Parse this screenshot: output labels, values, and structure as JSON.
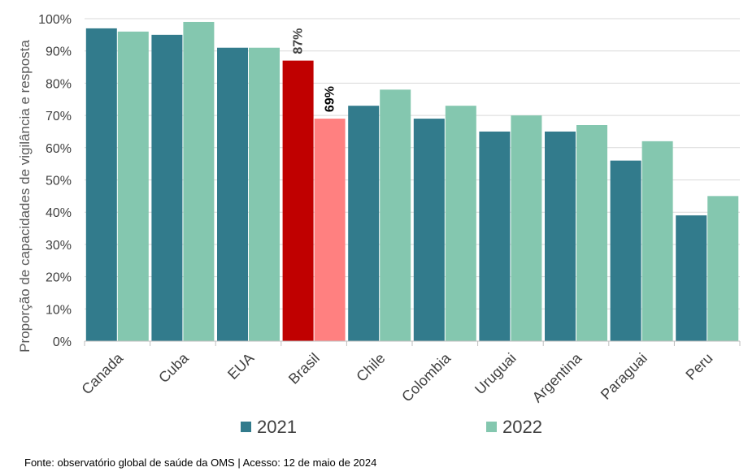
{
  "chart_data": {
    "type": "bar",
    "categories": [
      "Canada",
      "Cuba",
      "EUA",
      "Brasil",
      "Chile",
      "Colombia",
      "Uruguai",
      "Argentina",
      "Paraguai",
      "Peru"
    ],
    "series": [
      {
        "name": "2021",
        "color": "#327B8C",
        "values": [
          97,
          95,
          91,
          87,
          73,
          69,
          65,
          65,
          56,
          39
        ]
      },
      {
        "name": "2022",
        "color": "#84C7AF",
        "values": [
          96,
          99,
          91,
          69,
          78,
          73,
          70,
          67,
          62,
          45
        ]
      }
    ],
    "highlight": {
      "category": "Brasil",
      "colors": [
        "#C00000",
        "#FF8080"
      ]
    },
    "data_labels": [
      {
        "category": "Brasil",
        "series": "2021",
        "text": "87%",
        "color": "#404040"
      },
      {
        "category": "Brasil",
        "series": "2022",
        "text": "69%",
        "color": "#000000"
      }
    ],
    "ylabel": "Proporção de capacidades de vigilância e resposta",
    "xlabel": "",
    "ylim": [
      0,
      100
    ],
    "yticks": [
      "0%",
      "10%",
      "20%",
      "30%",
      "40%",
      "50%",
      "60%",
      "70%",
      "80%",
      "90%",
      "100%"
    ],
    "grid": true,
    "legend": "bottom"
  },
  "source_note": "Fonte: observatório global de saúde da OMS | Acesso: 12 de maio de 2024"
}
